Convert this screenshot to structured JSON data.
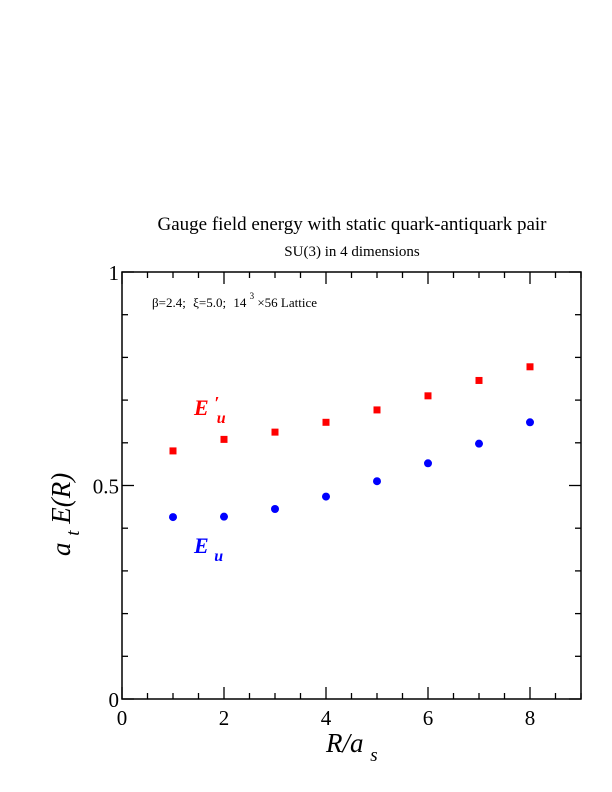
{
  "chart_data": {
    "type": "scatter",
    "title": "Gauge field energy with static quark-antiquark pair",
    "subtitle": "SU(3) in 4 dimensions",
    "annotation": {
      "beta": "β=2.4;",
      "xi": "ξ=5.0;",
      "lattice_base": "14",
      "lattice_exp": "3",
      "lattice_rest": "×56 Lattice"
    },
    "xlabel": {
      "main": "R/a",
      "sub": "s"
    },
    "ylabel": {
      "a": "a",
      "sub": "t",
      "rest": "E(R)"
    },
    "xlim": [
      0,
      9
    ],
    "ylim": [
      0,
      1
    ],
    "x_ticks": [
      {
        "value": 0,
        "label": "0"
      },
      {
        "value": 2,
        "label": "2"
      },
      {
        "value": 4,
        "label": "4"
      },
      {
        "value": 6,
        "label": "6"
      },
      {
        "value": 8,
        "label": "8"
      }
    ],
    "y_ticks": [
      {
        "value": 0,
        "label": "0"
      },
      {
        "value": 0.5,
        "label": "0.5"
      },
      {
        "value": 1,
        "label": "1"
      }
    ],
    "series": [
      {
        "name": "E'u",
        "label_main": "E",
        "label_prime": "′",
        "label_sub": "u",
        "color": "#ff0000",
        "marker": "square",
        "x": [
          1,
          2,
          3,
          4,
          5,
          6,
          7,
          8
        ],
        "values": [
          0.581,
          0.608,
          0.625,
          0.648,
          0.677,
          0.71,
          0.746,
          0.778
        ]
      },
      {
        "name": "Eu",
        "label_main": "E",
        "label_prime": "",
        "label_sub": "u",
        "color": "#0000ff",
        "marker": "circle",
        "x": [
          1,
          2,
          3,
          4,
          5,
          6,
          7,
          8
        ],
        "values": [
          0.426,
          0.427,
          0.445,
          0.474,
          0.51,
          0.552,
          0.598,
          0.648
        ]
      }
    ]
  }
}
